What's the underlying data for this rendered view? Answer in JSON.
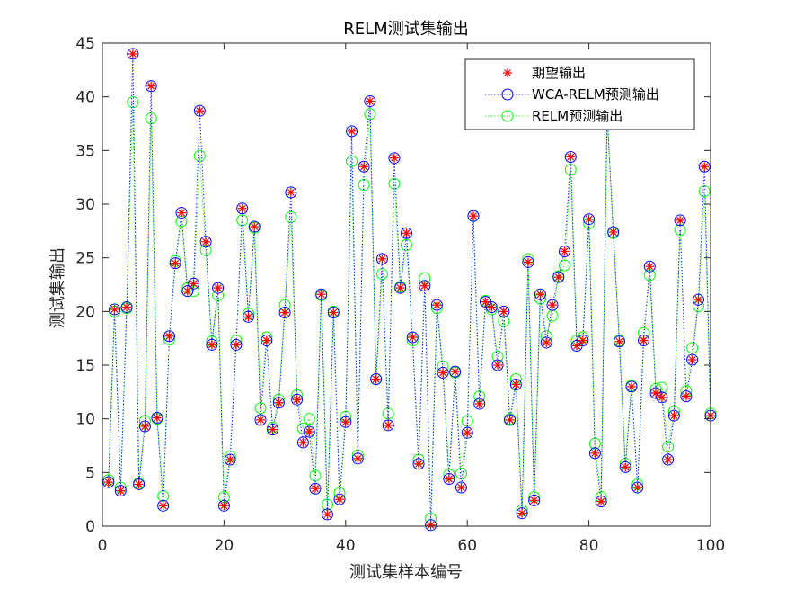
{
  "chart_data": {
    "type": "line",
    "title": "RELM测试集输出",
    "xlabel": "测试集样本编号",
    "ylabel": "测试集输出",
    "xlim": [
      0,
      100
    ],
    "ylim": [
      0,
      45
    ],
    "xticks": [
      0,
      20,
      40,
      60,
      80,
      100
    ],
    "yticks": [
      0,
      5,
      10,
      15,
      20,
      25,
      30,
      35,
      40,
      45
    ],
    "grid": false,
    "legend_position": "top-right",
    "x": [
      1,
      2,
      3,
      4,
      5,
      6,
      7,
      8,
      9,
      10,
      11,
      12,
      13,
      14,
      15,
      16,
      17,
      18,
      19,
      20,
      21,
      22,
      23,
      24,
      25,
      26,
      27,
      28,
      29,
      30,
      31,
      32,
      33,
      34,
      35,
      36,
      37,
      38,
      39,
      40,
      41,
      42,
      43,
      44,
      45,
      46,
      47,
      48,
      49,
      50,
      51,
      52,
      53,
      54,
      55,
      56,
      57,
      58,
      59,
      60,
      61,
      62,
      63,
      64,
      65,
      66,
      67,
      68,
      69,
      70,
      71,
      72,
      73,
      74,
      75,
      76,
      77,
      78,
      79,
      80,
      81,
      82,
      83,
      84,
      85,
      86,
      87,
      88,
      89,
      90,
      91,
      92,
      93,
      94,
      95,
      96,
      97,
      98,
      99,
      100
    ],
    "series": [
      {
        "name": "期望输出",
        "color": "#ff0000",
        "marker": "asterisk",
        "line": "none",
        "values": [
          4.1,
          20.2,
          3.3,
          20.4,
          44.0,
          3.9,
          9.3,
          41.0,
          10.1,
          1.9,
          17.7,
          24.5,
          29.2,
          21.9,
          22.6,
          38.7,
          26.5,
          16.9,
          22.2,
          1.9,
          6.2,
          16.9,
          29.6,
          19.5,
          27.9,
          9.9,
          17.3,
          9.0,
          11.5,
          19.9,
          31.1,
          11.8,
          7.8,
          8.8,
          3.5,
          21.6,
          1.1,
          19.9,
          2.5,
          9.7,
          36.8,
          6.3,
          33.5,
          39.6,
          13.7,
          24.9,
          9.4,
          34.3,
          22.2,
          27.3,
          17.6,
          5.8,
          22.4,
          0.1,
          20.6,
          14.3,
          4.4,
          14.4,
          3.6,
          8.7,
          28.9,
          11.4,
          20.9,
          20.4,
          15.0,
          20.0,
          9.9,
          13.2,
          1.2,
          24.6,
          2.4,
          21.6,
          17.1,
          20.6,
          23.2,
          25.6,
          34.4,
          16.8,
          17.3,
          28.6,
          6.8,
          2.3,
          38.5,
          27.4,
          17.2,
          5.5,
          13.0,
          3.6,
          17.3,
          24.2,
          12.4,
          12.0,
          6.2,
          10.3,
          28.5,
          12.1,
          15.5,
          21.1,
          33.5,
          10.3
        ]
      },
      {
        "name": "WCA-RELM预测输出",
        "color": "#0000ff",
        "marker": "circle",
        "line": "dotted",
        "values": [
          4.1,
          20.2,
          3.3,
          20.4,
          44.0,
          3.9,
          9.3,
          41.0,
          10.1,
          1.9,
          17.7,
          24.5,
          29.2,
          21.9,
          22.6,
          38.7,
          26.5,
          16.9,
          22.2,
          1.9,
          6.2,
          16.9,
          29.6,
          19.5,
          27.9,
          9.9,
          17.3,
          9.0,
          11.5,
          19.9,
          31.1,
          11.8,
          7.8,
          8.8,
          3.5,
          21.6,
          1.1,
          19.9,
          2.5,
          9.7,
          36.8,
          6.3,
          33.5,
          39.6,
          13.7,
          24.9,
          9.4,
          34.3,
          22.2,
          27.3,
          17.6,
          5.8,
          22.4,
          0.1,
          20.6,
          14.3,
          4.4,
          14.4,
          3.6,
          8.7,
          28.9,
          11.4,
          20.9,
          20.4,
          15.0,
          20.0,
          9.9,
          13.2,
          1.2,
          24.6,
          2.4,
          21.6,
          17.1,
          20.6,
          23.2,
          25.6,
          34.4,
          16.8,
          17.3,
          28.6,
          6.8,
          2.3,
          38.5,
          27.4,
          17.2,
          5.5,
          13.0,
          3.6,
          17.3,
          24.2,
          12.4,
          12.0,
          6.2,
          10.3,
          28.5,
          12.1,
          15.5,
          21.1,
          33.5,
          10.3
        ]
      },
      {
        "name": "RELM预测输出",
        "color": "#00ff00",
        "marker": "circle",
        "line": "dotted",
        "values": [
          4.3,
          20.0,
          3.6,
          20.3,
          39.5,
          4.0,
          9.8,
          38.0,
          10.0,
          2.8,
          17.4,
          24.7,
          28.4,
          22.2,
          21.9,
          34.5,
          25.7,
          17.2,
          21.5,
          2.7,
          6.5,
          17.3,
          28.5,
          19.8,
          27.8,
          11.0,
          17.6,
          9.2,
          11.8,
          20.6,
          28.8,
          12.2,
          9.1,
          10.0,
          4.7,
          21.5,
          2.0,
          20.0,
          3.1,
          10.2,
          34.0,
          6.6,
          31.8,
          38.4,
          13.7,
          23.5,
          10.5,
          31.9,
          22.3,
          26.2,
          17.3,
          6.2,
          23.1,
          0.7,
          20.3,
          14.9,
          4.8,
          14.3,
          4.9,
          9.8,
          28.9,
          12.1,
          21.0,
          20.2,
          15.8,
          19.1,
          10.0,
          13.7,
          1.5,
          24.9,
          2.7,
          21.2,
          17.7,
          19.6,
          23.3,
          24.3,
          33.2,
          17.3,
          17.6,
          28.2,
          7.7,
          2.7,
          38.2,
          27.3,
          17.3,
          5.8,
          13.1,
          3.9,
          18.0,
          23.4,
          12.8,
          12.9,
          7.4,
          10.7,
          27.6,
          12.6,
          16.6,
          20.5,
          31.2,
          10.5
        ]
      }
    ]
  }
}
